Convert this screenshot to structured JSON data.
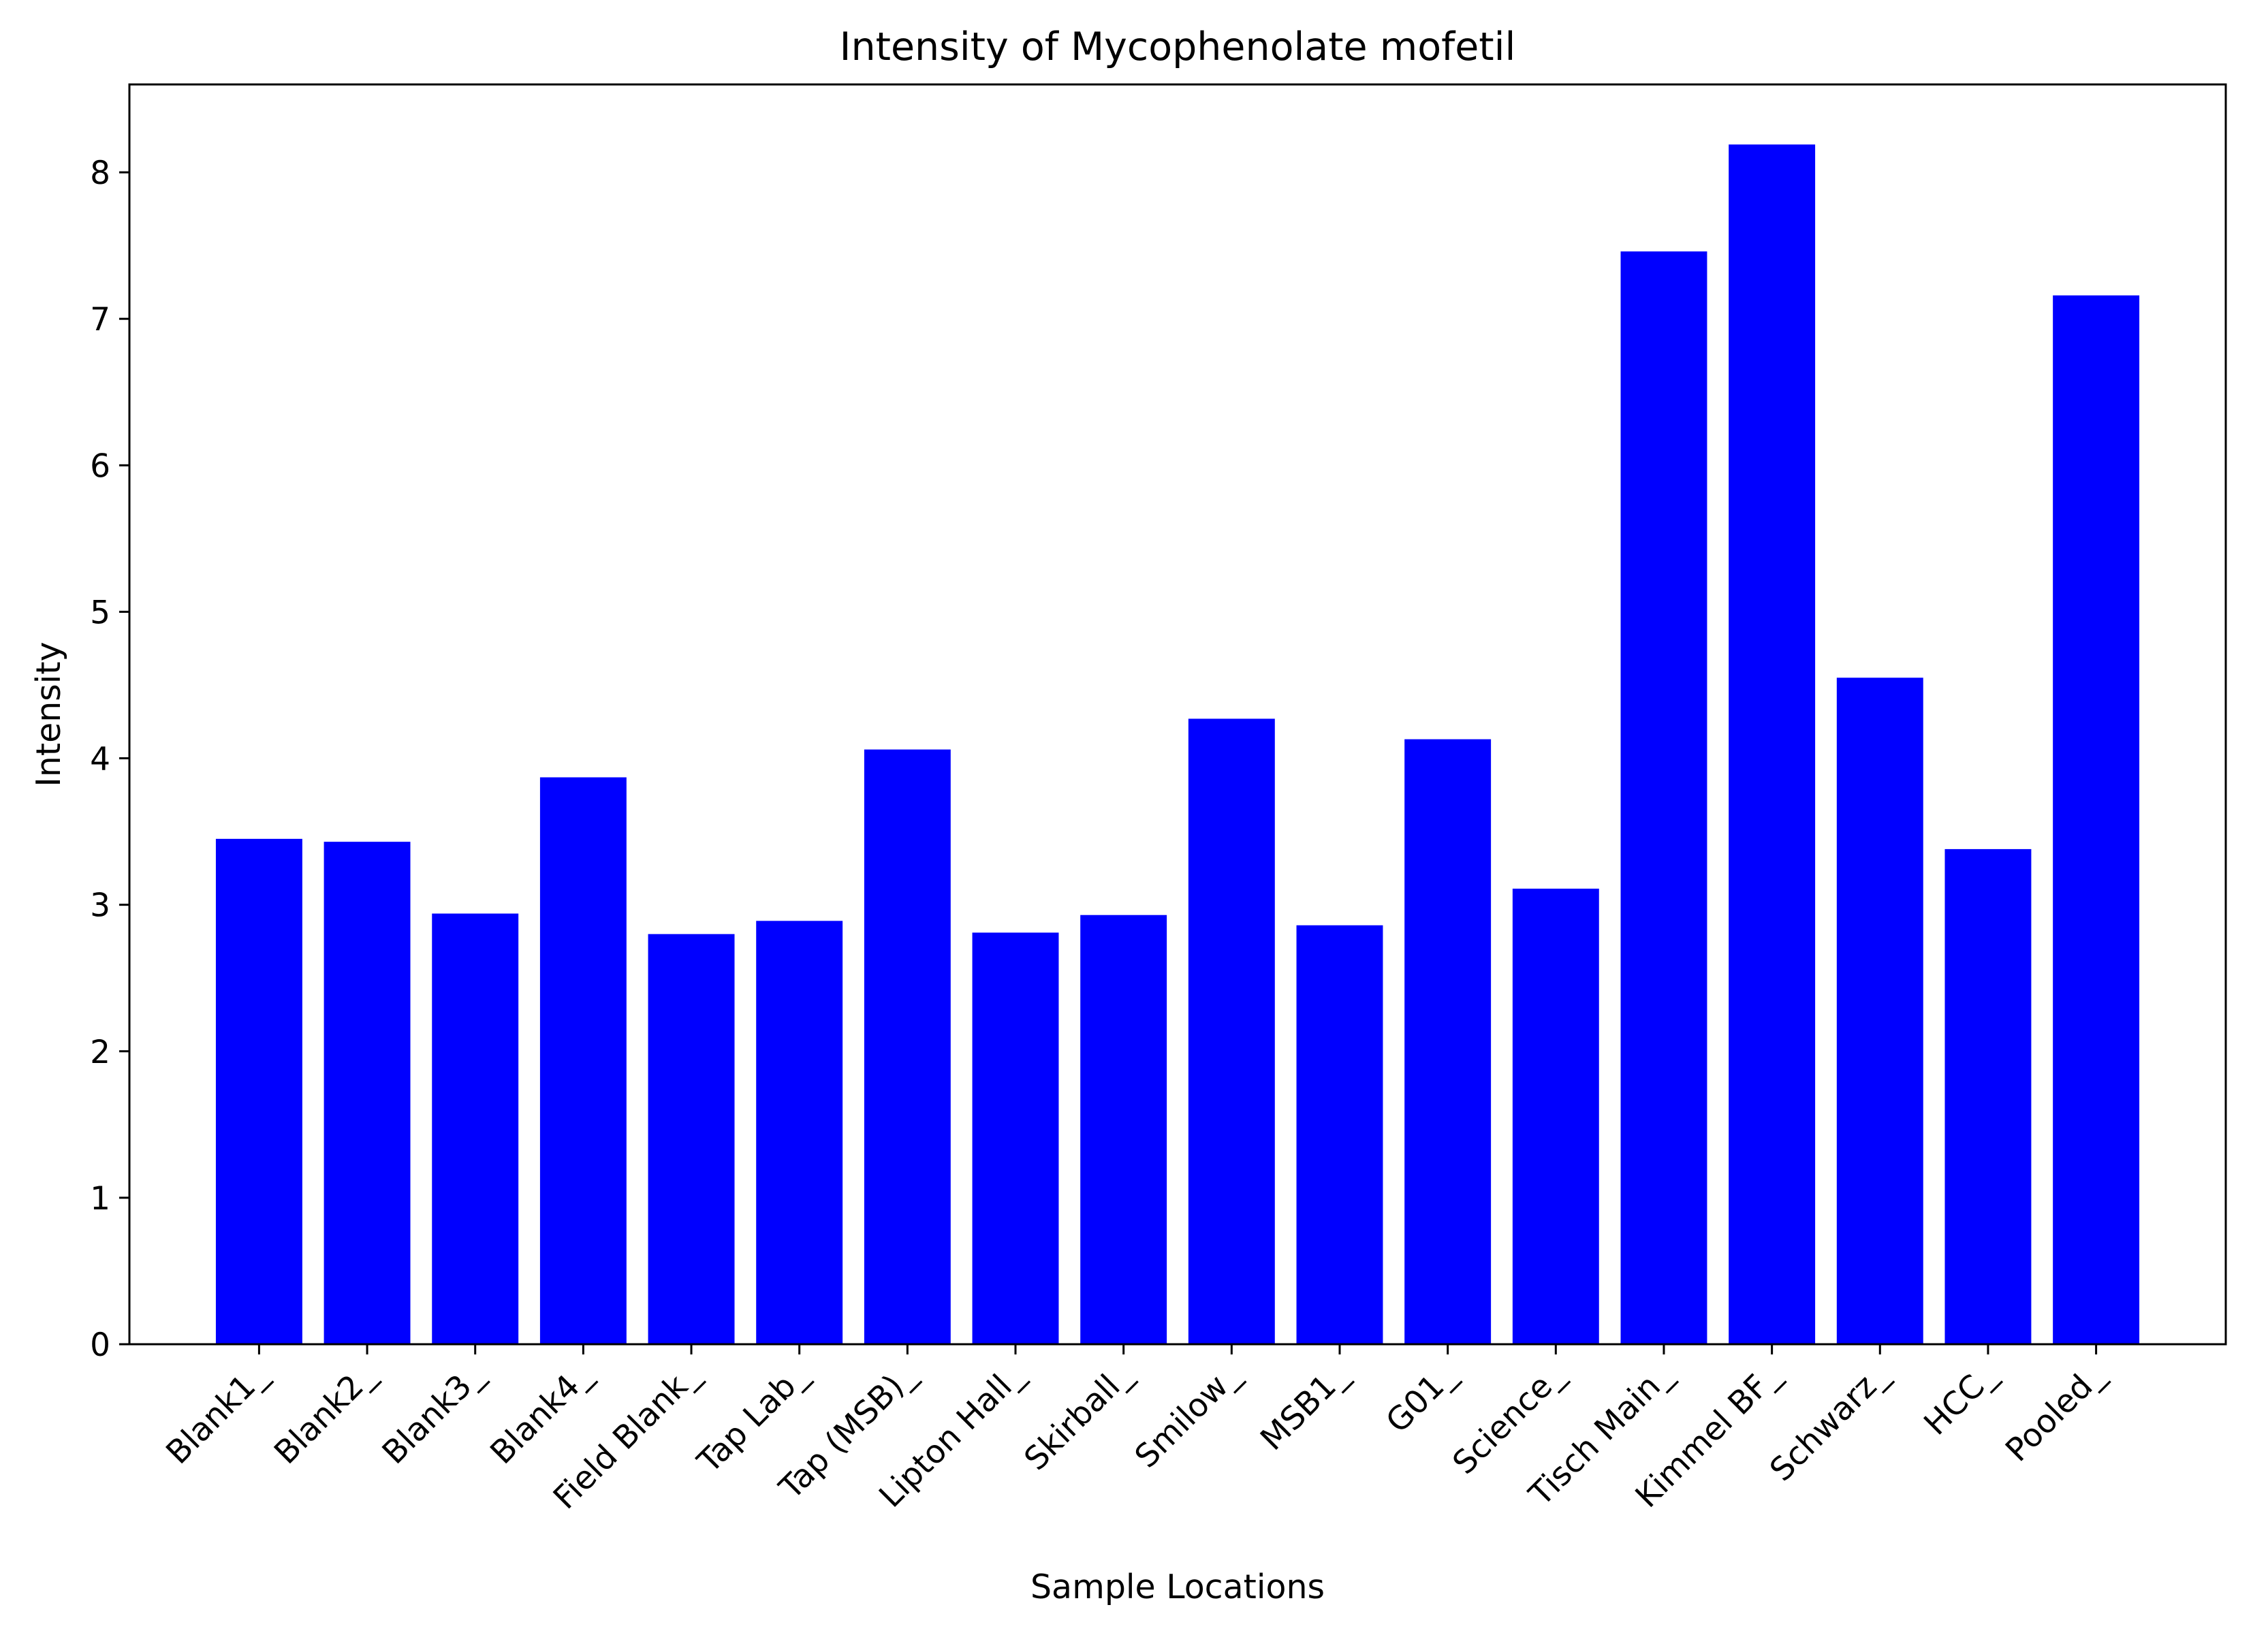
{
  "chart_data": {
    "type": "bar",
    "title": "Intensity of Mycophenolate mofetil",
    "xlabel": "Sample Locations",
    "ylabel": "Intensity",
    "categories": [
      "Blank1_",
      "Blank2_",
      "Blank3_",
      "Blank4_",
      "Field Blank_",
      "Tap Lab_",
      "Tap (MSB)_",
      "Lipton Hall_",
      "Skirball_",
      "Smilow_",
      "MSB1_",
      "G01_",
      "Science_",
      "Tisch Main_",
      "Kimmel BF_",
      "Schwarz_",
      "HCC_",
      "Pooled_"
    ],
    "values": [
      3.45,
      3.43,
      2.94,
      3.87,
      2.8,
      2.89,
      4.06,
      2.81,
      2.93,
      4.27,
      2.86,
      4.13,
      3.11,
      7.46,
      8.19,
      4.55,
      3.38,
      7.16
    ],
    "ylim": [
      0,
      8.6
    ],
    "yticks": [
      0,
      1,
      2,
      3,
      4,
      5,
      6,
      7,
      8
    ],
    "bar_color": "#0000ff",
    "grid": false
  }
}
